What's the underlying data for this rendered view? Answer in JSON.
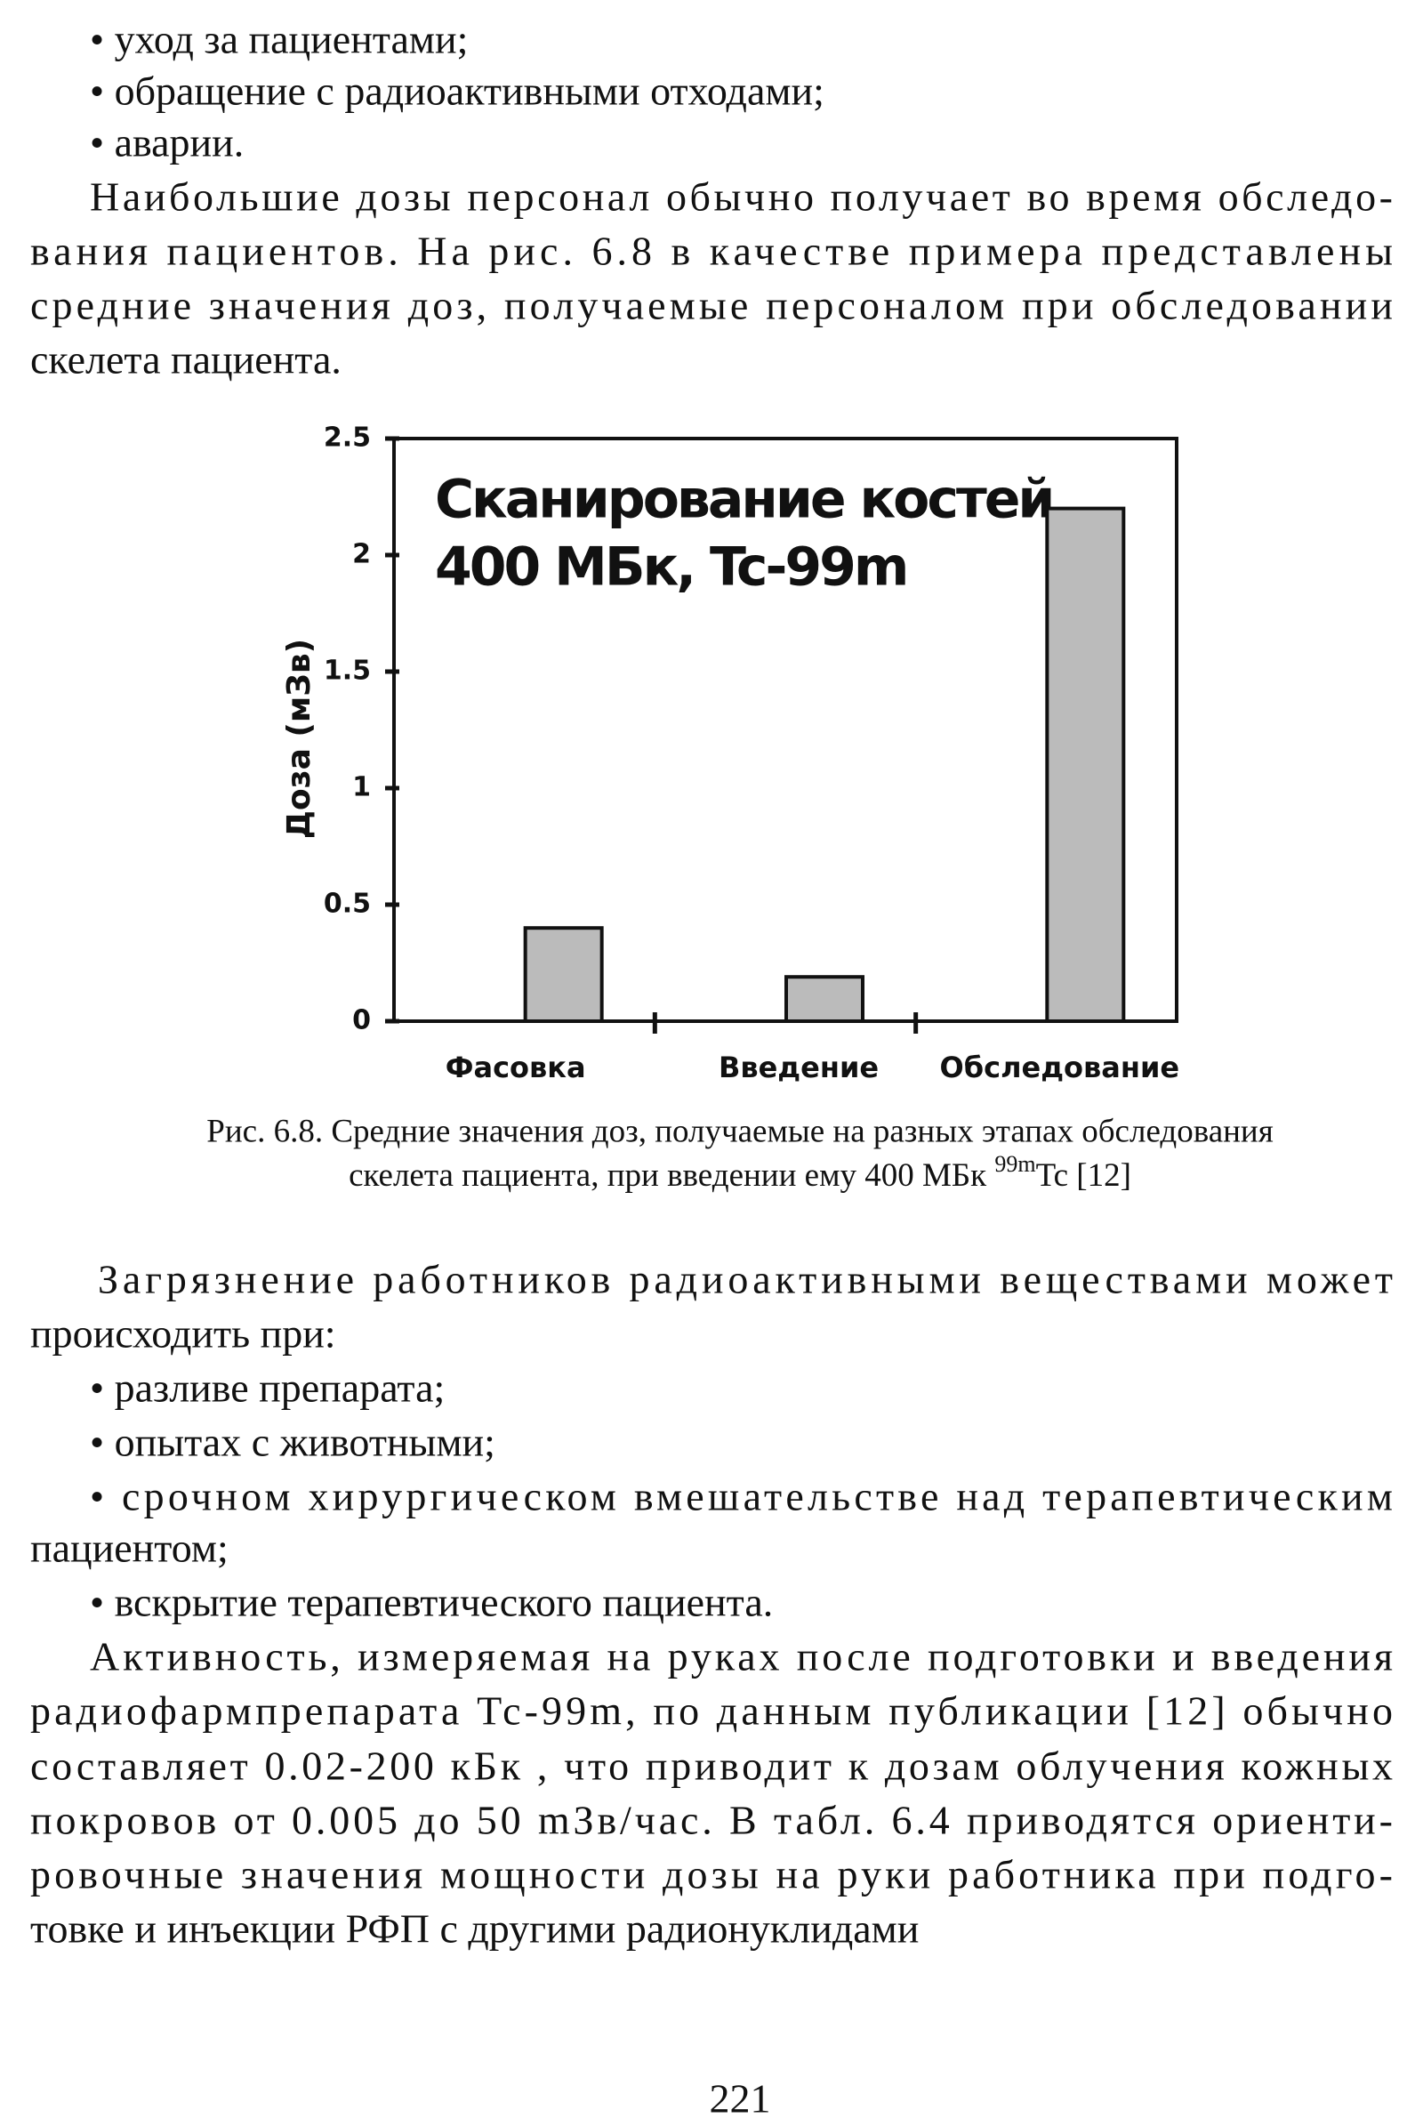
{
  "list1": [
    "• уход за пациентами;",
    "•  обращение с радиоактивными отходами;",
    "• аварии."
  ],
  "para1": [
    "Наибольшие дозы персонал обычно получает во время обследо-",
    "вания пациентов. На рис. 6.8 в качестве примера представлены",
    "средние значения доз, получаемые персоналом при обследовании",
    "скелета пациента."
  ],
  "chart_data": {
    "type": "bar",
    "title": [
      "Сканирование костей",
      "400 МБк, Tc-99m"
    ],
    "y_label": "Доза (мЗв)",
    "categories": [
      "Фасовка",
      "Введение",
      "Обследование"
    ],
    "values": [
      0.4,
      0.19,
      2.2
    ],
    "color": "#bbbbbb",
    "ylim": [
      0,
      2.5
    ],
    "yticks": [
      0,
      0.5,
      1,
      1.5,
      2,
      2.5
    ]
  },
  "caption": {
    "line1": "Рис. 6.8. Средние значения доз, получаемые на разных этапах обследования",
    "line2_before": "скелета пациента, при введении ему 400 МБк ",
    "sup": "99m",
    "line2_after": "Tc [12]"
  },
  "para2": [
    "Загрязнение работников радиоактивными веществами может",
    "происходить при:"
  ],
  "list2": [
    "• разливе препарата;",
    "• опытах с животными;",
    "• срочном хирургическом вмешательстве над терапевтическим",
    "пациентом;",
    "• вскрытие терапевтического  пациента."
  ],
  "para3": [
    "Активность,  измеряемая на руках после подготовки и введения",
    "радиофармпрепарата Tc-99m, по данным публикации [12] обычно",
    "составляет 0.02-200 кБк , что приводит к дозам облучения кожных",
    "покровов от 0.005 до 50 mЗв/час. В табл. 6.4 приводятся ориенти-",
    "ровочные значения мощности дозы на руки работника при подго-",
    "товке и инъекции РФП с другими радионуклидами"
  ],
  "page_number": "221"
}
